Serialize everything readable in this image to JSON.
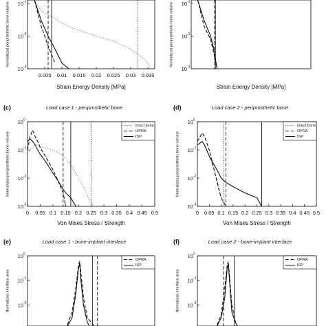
{
  "chart_data": [
    {
      "type": "line",
      "log_y": true,
      "xlabel": "Strain Energy Density [MPa]",
      "ylabel": "Normalized periprosthetic bone volume",
      "xlim": [
        0,
        0.037
      ],
      "ylim": [
        0.001,
        0.127
      ],
      "xticks": [
        0.005,
        0.01,
        0.015,
        0.02,
        0.025,
        0.03,
        0.035
      ],
      "yticks": [
        {
          "value": 0.1,
          "label": "10",
          "exponent": "-1"
        },
        {
          "value": 0.01,
          "label": "10",
          "exponent": "-2"
        },
        {
          "value": 0.001,
          "label": "10",
          "exponent": "-3"
        }
      ],
      "x": [
        0.002,
        0.004,
        0.006,
        0.008,
        0.01,
        0.012,
        0.015,
        0.02,
        0.025,
        0.03,
        0.034,
        0.036
      ],
      "series": [
        {
          "color": "#555555",
          "dash": "dotted",
          "values": [
            0.127,
            0.06,
            0.045,
            0.035,
            0.025,
            0.02,
            0.015,
            0.01,
            0.007,
            0.004,
            0.002,
            0.001
          ]
        },
        {
          "color": "#111111",
          "dash": "dashed",
          "values": [
            0.127,
            0.02,
            0.005,
            0.0015,
            null,
            null,
            null,
            null,
            null,
            null,
            null,
            null
          ]
        },
        {
          "color": "#111111",
          "dash": "solid",
          "values": [
            0.127,
            0.03,
            0.01,
            0.004,
            0.0015,
            0.001,
            null,
            null,
            null,
            null,
            null,
            null
          ]
        }
      ],
      "vlines": [
        {
          "x": 0.006,
          "dash": "dashed"
        },
        {
          "x": 0.007,
          "dash": "solid"
        },
        {
          "x": 0.032,
          "dash": "dotted"
        }
      ]
    },
    {
      "type": "line",
      "log_y": true,
      "xlabel": "Strain Energy Density [MPa]",
      "ylabel": "Normalized periprosthetic bone volume",
      "xlim": [
        0,
        0.037
      ],
      "ylim": [
        0.001,
        0.127
      ],
      "yticks": [
        {
          "value": 0.1,
          "label": "10",
          "exponent": "-1"
        },
        {
          "value": 0.01,
          "label": "10",
          "exponent": "-2"
        },
        {
          "value": 0.001,
          "label": "10",
          "exponent": "-3"
        }
      ],
      "x": [
        0.002,
        0.004,
        0.006,
        0.007,
        0.008
      ],
      "series": [
        {
          "color": "#111111",
          "dash": "dashed",
          "values": [
            0.127,
            0.02,
            0.008,
            0.003,
            0.001
          ]
        },
        {
          "color": "#111111",
          "dash": "solid",
          "values": [
            0.127,
            0.03,
            0.01,
            0.004,
            0.001
          ]
        }
      ],
      "vlines": [
        {
          "x": 0.0072,
          "dash": "dashed"
        },
        {
          "x": 0.0075,
          "dash": "solid"
        }
      ]
    },
    {
      "type": "line",
      "log_y": true,
      "panel": "(c)",
      "title": "Load case 1 - periprosthetic bone",
      "xlabel": "Von Mises Stress / Strength",
      "ylabel": "Normalized periprosthetic bone volume",
      "xlim": [
        0,
        0.5
      ],
      "ylim": [
        0.001,
        1
      ],
      "xticks": [
        0,
        0.05,
        0.1,
        0.15,
        0.2,
        0.25,
        0.3,
        0.35,
        0.4,
        0.45,
        0.5
      ],
      "yticks": [
        {
          "value": 1,
          "label": "10",
          "exponent": "0"
        },
        {
          "value": 0.1,
          "label": "10",
          "exponent": "-1"
        },
        {
          "value": 0.01,
          "label": "10",
          "exponent": "-2"
        },
        {
          "value": 0.001,
          "label": "10",
          "exponent": "-3"
        }
      ],
      "x": [
        0,
        0.01,
        0.02,
        0.03,
        0.04,
        0.05,
        0.07,
        0.1,
        0.12,
        0.14,
        0.15,
        0.17,
        0.19,
        0.2,
        0.22,
        0.24,
        0.26
      ],
      "series": [
        {
          "name": "intact bone",
          "color": "#555555",
          "dash": "dotted",
          "values": [
            0.08,
            0.1,
            0.12,
            0.15,
            0.15,
            0.13,
            0.12,
            0.1,
            0.08,
            0.06,
            0.05,
            0.03,
            0.015,
            0.01,
            0.005,
            0.002,
            0.001
          ]
        },
        {
          "name": "OPRA",
          "color": "#111111",
          "dash": "dashed",
          "values": [
            0.1,
            0.3,
            0.5,
            0.3,
            0.2,
            0.12,
            0.06,
            0.02,
            0.008,
            0.003,
            0.001,
            null,
            null,
            null,
            null,
            null,
            null
          ]
        },
        {
          "name": "ISP",
          "color": "#111111",
          "dash": "solid",
          "values": [
            0.2,
            0.25,
            0.2,
            0.15,
            0.1,
            0.07,
            0.04,
            0.015,
            0.008,
            0.004,
            0.003,
            0.002,
            0.001,
            null,
            null,
            null,
            null
          ]
        }
      ],
      "vlines": [
        {
          "x": 0.14,
          "dash": "dashed"
        },
        {
          "x": 0.17,
          "dash": "solid"
        },
        {
          "x": 0.25,
          "dash": "dotted"
        }
      ]
    },
    {
      "type": "line",
      "log_y": true,
      "panel": "(d)",
      "title": "Load case 2 - periprosthetic bone",
      "xlabel": "Von Mises Stress / Strength",
      "ylabel": "Normalized periprosthetic bone volume",
      "xlim": [
        0,
        0.5
      ],
      "ylim": [
        0.001,
        1
      ],
      "xticks": [
        0,
        0.05,
        0.1,
        0.15,
        0.2,
        0.25,
        0.3,
        0.35,
        0.4,
        0.45,
        0.5
      ],
      "yticks": [
        {
          "value": 1,
          "label": "10",
          "exponent": "0"
        },
        {
          "value": 0.1,
          "label": "10",
          "exponent": "-1"
        },
        {
          "value": 0.01,
          "label": "10",
          "exponent": "-2"
        },
        {
          "value": 0.001,
          "label": "10",
          "exponent": "-3"
        }
      ],
      "x": [
        0,
        0.02,
        0.03,
        0.05,
        0.07,
        0.09,
        0.1,
        0.12,
        0.15,
        0.2,
        0.25,
        0.27
      ],
      "series": [
        {
          "name": "intact bone",
          "color": "#555555",
          "dash": "dotted",
          "values": [
            0.15,
            0.2,
            0.15,
            0.06,
            0.02,
            0.005,
            0.002,
            0.001,
            null,
            null,
            null,
            null
          ]
        },
        {
          "name": "OPRA",
          "color": "#111111",
          "dash": "dashed",
          "values": [
            0.2,
            0.4,
            0.3,
            0.1,
            0.02,
            0.004,
            0.002,
            0.001,
            null,
            null,
            null,
            null
          ]
        },
        {
          "name": "ISP",
          "color": "#111111",
          "dash": "solid",
          "values": [
            0.15,
            0.2,
            0.15,
            0.06,
            0.03,
            0.015,
            0.01,
            0.007,
            0.005,
            0.003,
            0.002,
            0.001
          ]
        }
      ],
      "vlines": [
        {
          "x": 0.11,
          "dash": "dotted"
        },
        {
          "x": 0.12,
          "dash": "dashed"
        },
        {
          "x": 0.27,
          "dash": "solid"
        }
      ]
    },
    {
      "type": "line",
      "log_y": true,
      "panel": "(e)",
      "title": "Load case 1 - bone-implant interface",
      "ylabel": "Normalized interface area",
      "xlim": [
        0,
        1
      ],
      "ylim": [
        0.0014,
        1
      ],
      "yticks": [
        {
          "value": 1,
          "label": "10",
          "exponent": "0"
        },
        {
          "value": 0.1,
          "label": "10",
          "exponent": "-1"
        },
        {
          "value": 0.01,
          "label": "10",
          "exponent": "-2"
        }
      ],
      "x": [
        0.3,
        0.35,
        0.38,
        0.4,
        0.41,
        0.42,
        0.44,
        0.47,
        0.5,
        0.55
      ],
      "series": [
        {
          "name": "OPRA",
          "color": "#111111",
          "dash": "dashed",
          "values": [
            0.001,
            0.005,
            0.05,
            0.4,
            0.6,
            0.2,
            0.02,
            0.003,
            0.002,
            0.001
          ]
        },
        {
          "name": "ISP",
          "color": "#111111",
          "dash": "solid",
          "values": [
            0.001,
            0.003,
            0.03,
            0.3,
            0.5,
            0.1,
            0.01,
            0.002,
            0.001,
            null
          ]
        }
      ],
      "vlines": [
        {
          "x": 0.51,
          "dash": "solid"
        },
        {
          "x": 0.55,
          "dash": "dashed"
        }
      ]
    },
    {
      "type": "line",
      "log_y": true,
      "panel": "(f)",
      "title": "Load case 2 - bone-implant interface",
      "ylabel": "Normalized interface area",
      "xlim": [
        0,
        1
      ],
      "ylim": [
        0.0014,
        1
      ],
      "yticks": [
        {
          "value": 1,
          "label": "10",
          "exponent": "0"
        },
        {
          "value": 0.1,
          "label": "10",
          "exponent": "-1"
        },
        {
          "value": 0.01,
          "label": "10",
          "exponent": "-2"
        }
      ],
      "x": [
        0.15,
        0.2,
        0.23,
        0.25,
        0.26,
        0.27,
        0.29,
        0.32,
        0.35
      ],
      "series": [
        {
          "name": "OPRA",
          "color": "#111111",
          "dash": "dashed",
          "values": [
            0.001,
            0.004,
            0.05,
            0.4,
            0.6,
            0.15,
            0.01,
            0.002,
            0.001
          ]
        },
        {
          "name": "ISP",
          "color": "#111111",
          "dash": "solid",
          "values": [
            0.001,
            0.003,
            0.02,
            0.3,
            0.5,
            0.1,
            0.005,
            0.002,
            0.001
          ]
        }
      ],
      "vlines": [
        {
          "x": 0.22,
          "dash": "dashed"
        },
        {
          "x": 0.31,
          "dash": "solid"
        }
      ]
    }
  ]
}
